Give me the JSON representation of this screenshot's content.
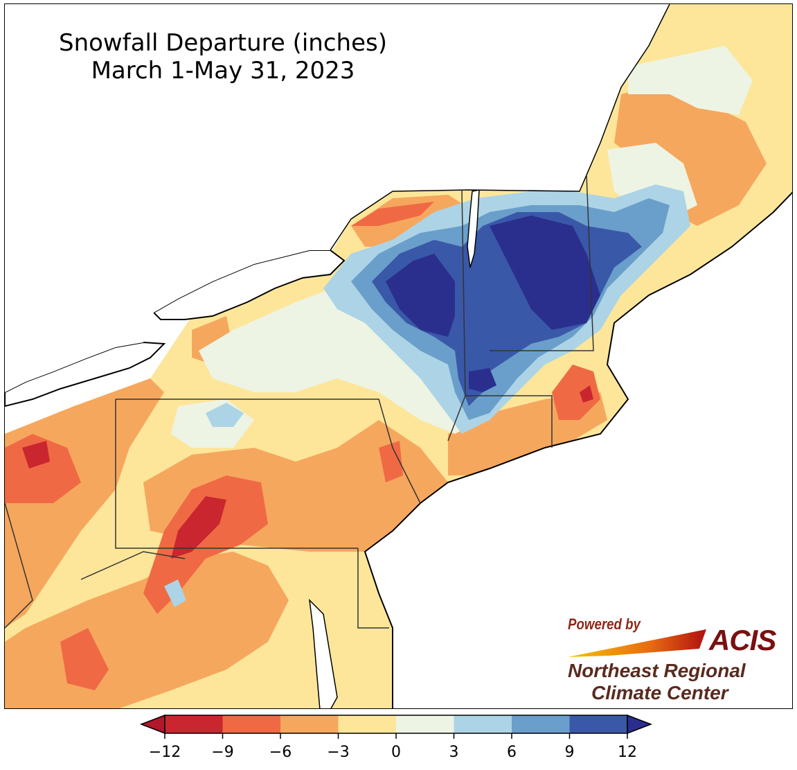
{
  "title": {
    "line1": "Snowfall Departure (inches)",
    "line2": "March 1-May 31, 2023"
  },
  "logo": {
    "powered_by": "Powered by",
    "acis": "ACIS",
    "org_line1": "Northeast Regional",
    "org_line2": "Climate Center"
  },
  "legend": {
    "ticks": [
      "−12",
      "−9",
      "−6",
      "−3",
      "0",
      "3",
      "6",
      "9",
      "12"
    ],
    "colors": [
      "#b2182b",
      "#c9262f",
      "#ef6a44",
      "#f6a75e",
      "#fde69a",
      "#edf4e4",
      "#acd4e6",
      "#6a9fcb",
      "#3a58a8",
      "#2a2f8e"
    ],
    "extend": "both"
  },
  "palette": {
    "below_-12": "#b2182b",
    "-12_-9": "#c9262f",
    "-9_-6": "#ef6a44",
    "-6_-3": "#f6a75e",
    "-3_0": "#fde69a",
    "0_3": "#edf4e4",
    "3_6": "#acd4e6",
    "6_9": "#6a9fcb",
    "9_12": "#3a58a8",
    "above_12": "#2a2f8e"
  }
}
